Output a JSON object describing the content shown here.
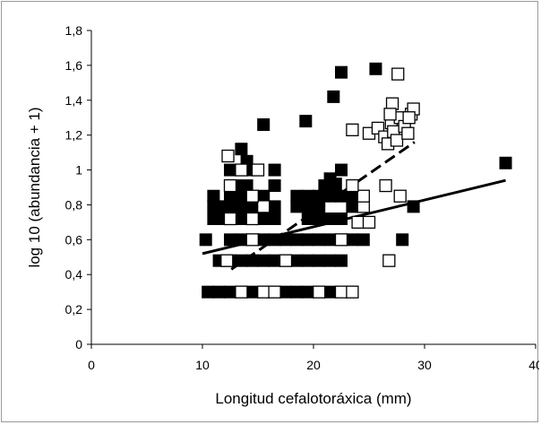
{
  "chart_data": {
    "type": "scatter",
    "title": "",
    "xlabel": "Longitud cefalotoráxica (mm)",
    "ylabel": "log 10 (abundancia + 1)",
    "xlim": [
      0,
      40
    ],
    "ylim": [
      0,
      1.8
    ],
    "x_ticks": [
      "0",
      "10",
      "20",
      "30",
      "40"
    ],
    "y_ticks": [
      "0",
      "0,2",
      "0,4",
      "0,6",
      "0,8",
      "1",
      "1,2",
      "1,4",
      "1,6",
      "1,8"
    ],
    "grid": false,
    "legend": "none",
    "series": [
      {
        "marker": "filled-square",
        "color": "#000000",
        "points": [
          [
            10.5,
            0.3
          ],
          [
            11.5,
            0.3
          ],
          [
            12.5,
            0.3
          ],
          [
            14.5,
            0.3
          ],
          [
            17.5,
            0.3
          ],
          [
            18.5,
            0.3
          ],
          [
            19.5,
            0.3
          ],
          [
            21.5,
            0.3
          ],
          [
            11.5,
            0.48
          ],
          [
            12.5,
            0.48
          ],
          [
            13.5,
            0.48
          ],
          [
            14.5,
            0.48
          ],
          [
            15.5,
            0.48
          ],
          [
            16.5,
            0.48
          ],
          [
            18.5,
            0.48
          ],
          [
            19.5,
            0.48
          ],
          [
            20.5,
            0.48
          ],
          [
            21.5,
            0.48
          ],
          [
            22.5,
            0.48
          ],
          [
            10.3,
            0.6
          ],
          [
            12.5,
            0.6
          ],
          [
            13.5,
            0.6
          ],
          [
            15.5,
            0.6
          ],
          [
            16.5,
            0.6
          ],
          [
            17.5,
            0.6
          ],
          [
            18.5,
            0.6
          ],
          [
            19.5,
            0.6
          ],
          [
            20.5,
            0.6
          ],
          [
            21.5,
            0.6
          ],
          [
            23.5,
            0.6
          ],
          [
            24.5,
            0.6
          ],
          [
            11,
            0.72
          ],
          [
            12,
            0.72
          ],
          [
            13,
            0.72
          ],
          [
            14,
            0.72
          ],
          [
            15.5,
            0.72
          ],
          [
            16.5,
            0.72
          ],
          [
            19.5,
            0.72
          ],
          [
            20.5,
            0.72
          ],
          [
            21.5,
            0.72
          ],
          [
            22.5,
            0.72
          ],
          [
            11,
            0.79
          ],
          [
            12,
            0.79
          ],
          [
            13,
            0.79
          ],
          [
            14,
            0.79
          ],
          [
            15,
            0.79
          ],
          [
            16.5,
            0.79
          ],
          [
            18.5,
            0.79
          ],
          [
            19.5,
            0.79
          ],
          [
            20.5,
            0.79
          ],
          [
            23.5,
            0.79
          ],
          [
            29,
            0.79
          ],
          [
            11,
            0.85
          ],
          [
            12.5,
            0.85
          ],
          [
            13.5,
            0.85
          ],
          [
            15.5,
            0.85
          ],
          [
            18.5,
            0.85
          ],
          [
            19.5,
            0.85
          ],
          [
            20.5,
            0.85
          ],
          [
            21.5,
            0.85
          ],
          [
            22.5,
            0.85
          ],
          [
            23.5,
            0.85
          ],
          [
            13,
            0.91
          ],
          [
            14,
            0.91
          ],
          [
            16.5,
            0.91
          ],
          [
            21,
            0.91
          ],
          [
            12.5,
            1.0
          ],
          [
            14.5,
            1.0
          ],
          [
            16.5,
            1.0
          ],
          [
            22.5,
            1.0
          ],
          [
            21.5,
            0.95
          ],
          [
            22,
            0.92
          ],
          [
            14,
            1.05
          ],
          [
            13.5,
            1.12
          ],
          [
            15.5,
            1.26
          ],
          [
            19.3,
            1.28
          ],
          [
            21.8,
            1.42
          ],
          [
            22.5,
            1.56
          ],
          [
            25.6,
            1.58
          ],
          [
            28,
            0.6
          ],
          [
            37.3,
            1.04
          ]
        ]
      },
      {
        "marker": "open-square",
        "color": "#000000",
        "points": [
          [
            13.5,
            0.3
          ],
          [
            15.5,
            0.3
          ],
          [
            16.5,
            0.3
          ],
          [
            20.5,
            0.3
          ],
          [
            22.5,
            0.3
          ],
          [
            23.5,
            0.3
          ],
          [
            12.2,
            0.48
          ],
          [
            17.5,
            0.48
          ],
          [
            26.8,
            0.48
          ],
          [
            14.5,
            0.6
          ],
          [
            22.5,
            0.6
          ],
          [
            12.5,
            0.72
          ],
          [
            14.5,
            0.72
          ],
          [
            24,
            0.7
          ],
          [
            25,
            0.7
          ],
          [
            15.5,
            0.79
          ],
          [
            24.5,
            0.79
          ],
          [
            14.5,
            0.85
          ],
          [
            24.5,
            0.85
          ],
          [
            27.8,
            0.85
          ],
          [
            12.5,
            0.91
          ],
          [
            23.5,
            0.91
          ],
          [
            26.5,
            0.91
          ],
          [
            13.5,
            1.0
          ],
          [
            15,
            1.0
          ],
          [
            12.3,
            1.08
          ],
          [
            23.5,
            1.23
          ],
          [
            25,
            1.21
          ],
          [
            25.8,
            1.24
          ],
          [
            26.4,
            1.19
          ],
          [
            26.7,
            1.15
          ],
          [
            27,
            1.27
          ],
          [
            27.2,
            1.22
          ],
          [
            27.5,
            1.17
          ],
          [
            27.8,
            1.3
          ],
          [
            28.2,
            1.25
          ],
          [
            28.5,
            1.21
          ],
          [
            28.8,
            1.32
          ],
          [
            29,
            1.35
          ],
          [
            28.6,
            1.3
          ],
          [
            27.1,
            1.38
          ],
          [
            26.9,
            1.32
          ],
          [
            27.6,
            1.55
          ]
        ]
      }
    ],
    "trendlines": [
      {
        "style": "solid",
        "x": [
          10,
          37.3
        ],
        "y": [
          0.52,
          0.94
        ]
      },
      {
        "style": "dashed",
        "x": [
          12.6,
          29.1
        ],
        "y": [
          0.43,
          1.16
        ]
      }
    ]
  }
}
